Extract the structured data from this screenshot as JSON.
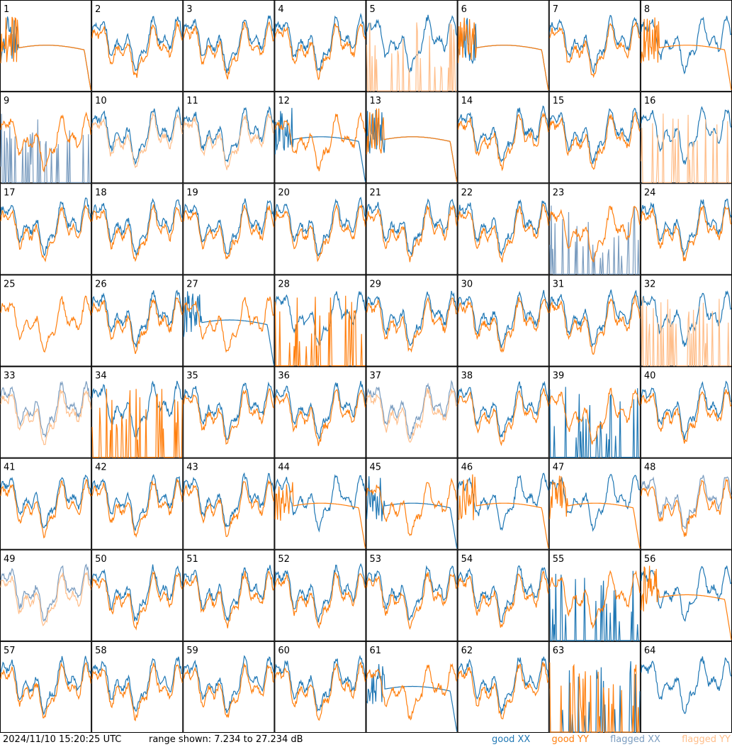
{
  "chart_data": {
    "type": "line",
    "panel_count": 64,
    "panel_labels": [
      "1",
      "2",
      "3",
      "4",
      "5",
      "6",
      "7",
      "8",
      "9",
      "10",
      "11",
      "12",
      "13",
      "14",
      "15",
      "16",
      "17",
      "18",
      "19",
      "20",
      "21",
      "22",
      "23",
      "24",
      "25",
      "26",
      "27",
      "28",
      "29",
      "30",
      "31",
      "32",
      "33",
      "34",
      "35",
      "36",
      "37",
      "38",
      "39",
      "40",
      "41",
      "42",
      "43",
      "44",
      "45",
      "46",
      "47",
      "48",
      "49",
      "50",
      "51",
      "52",
      "53",
      "54",
      "55",
      "56",
      "57",
      "58",
      "59",
      "60",
      "61",
      "62",
      "63",
      "64"
    ],
    "grid": {
      "rows": 8,
      "cols": 8
    },
    "range_db": [
      7.234,
      27.234
    ],
    "legend": [
      {
        "key": "good_xx",
        "label": "good XX",
        "color": "#1f77b4"
      },
      {
        "key": "good_yy",
        "label": "good YY",
        "color": "#ff7f0e"
      },
      {
        "key": "flagged_xx",
        "label": "flagged XX",
        "color": "#7a9cbf"
      },
      {
        "key": "flagged_yy",
        "label": "flagged YY",
        "color": "#ffbe8a"
      }
    ],
    "panel_state": {
      "xx_flagged": [
        9,
        23,
        33,
        37,
        48,
        49
      ],
      "yy_flagged": [
        5,
        10,
        11,
        16,
        32,
        33,
        37,
        49
      ],
      "xx_absent": [
        25
      ],
      "yy_absent": [
        64
      ],
      "xx_spiky": [
        9,
        23,
        39,
        55,
        63
      ],
      "yy_spiky": [
        5,
        16,
        28,
        32,
        34,
        63
      ],
      "xx_smooth_bump": [
        1,
        6,
        12,
        13,
        27,
        45,
        61
      ],
      "yy_smooth_bump": [
        1,
        6,
        8,
        13,
        44,
        46,
        47,
        56
      ]
    }
  },
  "footer": {
    "timestamp": "2024/11/10 15:20:25 UTC",
    "range_text": "range shown: 7.234 to 27.234 dB"
  }
}
